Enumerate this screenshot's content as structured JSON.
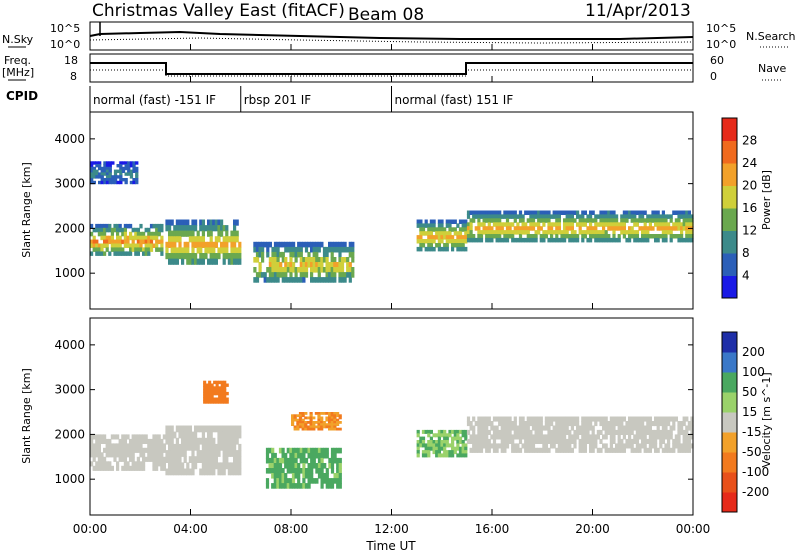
{
  "header": {
    "title": "Christmas Valley East (fitACF)",
    "beam": "Beam 08",
    "date": "11/Apr/2013"
  },
  "top_panels": {
    "nsky_label": "N.Sky",
    "nsky_ticks": [
      "10^5",
      "10^0"
    ],
    "nsearch_label": "N.Search",
    "nsearch_ticks": [
      "10^5",
      "10^0"
    ],
    "freq_label_1": "Freq.",
    "freq_label_2": "[MHz]",
    "freq_ticks": [
      "18",
      "8"
    ],
    "nave_label": "Nave",
    "nave_ticks": [
      "60",
      "0"
    ],
    "cpid_label": "CPID"
  },
  "cpid_segments": [
    {
      "label": "normal (fast) -151 IF",
      "start_hour": 0,
      "end_hour": 6
    },
    {
      "label": "rbsp 201 IF",
      "start_hour": 6,
      "end_hour": 12
    },
    {
      "label": "normal (fast) 151 IF",
      "start_hour": 12,
      "end_hour": 24
    }
  ],
  "axes": {
    "xlabel": "Time UT",
    "xticks": [
      "00:00",
      "04:00",
      "08:00",
      "12:00",
      "16:00",
      "20:00",
      "00:00"
    ],
    "ylabel": "Slant Range [km]",
    "yticks": [
      "1000",
      "2000",
      "3000",
      "4000"
    ]
  },
  "colorbars": {
    "power": {
      "label": "Power [dB]",
      "ticks": [
        "4",
        "8",
        "12",
        "16",
        "20",
        "24",
        "28"
      ],
      "colors": [
        "#1a1ae6",
        "#2b5fb8",
        "#3c8a8a",
        "#6aa84f",
        "#cfcf3a",
        "#f2a12a",
        "#f06a1e",
        "#e62a1a"
      ]
    },
    "velocity": {
      "label": "Velocity [m s^-1]",
      "ticks": [
        "200",
        "100",
        "50",
        "15",
        "-15",
        "-50",
        "-100",
        "-200"
      ],
      "colors": [
        "#1f2fa8",
        "#3a78c8",
        "#4aa860",
        "#9ad26a",
        "#c8c8c0",
        "#f2a12a",
        "#f27a1e",
        "#e8501a",
        "#e62a1a"
      ]
    }
  },
  "chart_data": [
    {
      "type": "heatmap",
      "title": "Power",
      "xlabel": "Time UT",
      "ylabel": "Slant Range [km]",
      "xlim": [
        0,
        24
      ],
      "ylim": [
        200,
        4600
      ],
      "cbar_label": "Power [dB]",
      "cbar_range": [
        0,
        32
      ],
      "features": [
        {
          "hour_start": 0.0,
          "hour_end": 2.9,
          "range_low": 1400,
          "range_high": 2100,
          "peak_power": 26
        },
        {
          "hour_start": 0.0,
          "hour_end": 1.9,
          "range_low": 3000,
          "range_high": 3500,
          "peak_power": 10
        },
        {
          "hour_start": 3.0,
          "hour_end": 6.0,
          "range_low": 1200,
          "range_high": 2200,
          "peak_power": 25
        },
        {
          "hour_start": 6.5,
          "hour_end": 10.5,
          "range_low": 800,
          "range_high": 1700,
          "peak_power": 22
        },
        {
          "hour_start": 13.0,
          "hour_end": 15.0,
          "range_low": 1500,
          "range_high": 2200,
          "peak_power": 24
        },
        {
          "hour_start": 15.0,
          "hour_end": 24.0,
          "range_low": 1700,
          "range_high": 2400,
          "peak_power": 24
        }
      ]
    },
    {
      "type": "heatmap",
      "title": "Velocity",
      "xlabel": "Time UT",
      "ylabel": "Slant Range [km]",
      "xlim": [
        0,
        24
      ],
      "ylim": [
        200,
        4600
      ],
      "cbar_label": "Velocity [m s^-1]",
      "cbar_range": [
        -200,
        200
      ],
      "features": [
        {
          "hour_start": 0.0,
          "hour_end": 3.0,
          "range_low": 1200,
          "range_high": 2000,
          "velocity": 0
        },
        {
          "hour_start": 3.0,
          "hour_end": 6.0,
          "range_low": 1100,
          "range_high": 2200,
          "velocity": 0
        },
        {
          "hour_start": 4.5,
          "hour_end": 5.5,
          "range_low": 2700,
          "range_high": 3200,
          "velocity": -70
        },
        {
          "hour_start": 7.0,
          "hour_end": 10.0,
          "range_low": 800,
          "range_high": 1700,
          "velocity": 40
        },
        {
          "hour_start": 8.0,
          "hour_end": 10.0,
          "range_low": 2100,
          "range_high": 2500,
          "velocity": -50
        },
        {
          "hour_start": 13.0,
          "hour_end": 15.0,
          "range_low": 1500,
          "range_high": 2100,
          "velocity": 30
        },
        {
          "hour_start": 15.0,
          "hour_end": 24.0,
          "range_low": 1600,
          "range_high": 2400,
          "velocity": 0
        }
      ]
    }
  ]
}
